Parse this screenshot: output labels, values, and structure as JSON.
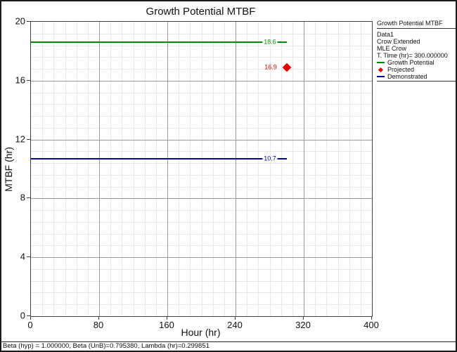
{
  "window": {
    "status_bar": "Beta (hyp) = 1.000000, Beta (UnB)=0.795380, Lambda (hr)=0.299851"
  },
  "chart_data": {
    "type": "line",
    "title": "Growth Potential MTBF",
    "xlabel": "Hour (hr)",
    "ylabel": "MTBF (hr)",
    "xlim": [
      0,
      400
    ],
    "ylim": [
      0,
      20
    ],
    "xticks": [
      0,
      80,
      160,
      240,
      320,
      400
    ],
    "yticks": [
      0,
      4,
      8,
      12,
      16,
      20
    ],
    "x_minor_divisions": 6,
    "y_minor_divisions": 5,
    "grid": true,
    "legend_position": "right",
    "series": [
      {
        "name": "Growth Potential",
        "kind": "hline",
        "y": 18.6,
        "x_start": 0,
        "x_end": 300,
        "color": "#008A00",
        "label": "18.6"
      },
      {
        "name": "Demonstrated",
        "kind": "hline",
        "y": 10.7,
        "x_start": 0,
        "x_end": 300,
        "color": "#0000A0",
        "label": "10.7"
      },
      {
        "name": "Projected",
        "kind": "point",
        "x": 300,
        "y": 16.9,
        "marker": "diamond",
        "color": "#E60000",
        "label": "16.9"
      }
    ],
    "legend": {
      "title": "Growth Potential MTBF",
      "info_lines": [
        "Data1",
        "Crow Extended",
        "MLE Crow",
        "T. Time (hr)= 300.000000"
      ],
      "entries": [
        {
          "label": "Growth Potential",
          "marker": "line",
          "color": "#008A00"
        },
        {
          "label": "Projected",
          "marker": "diamond",
          "color": "#E60000"
        },
        {
          "label": "Demonstrated",
          "marker": "line",
          "color": "#0000A0"
        }
      ]
    }
  }
}
